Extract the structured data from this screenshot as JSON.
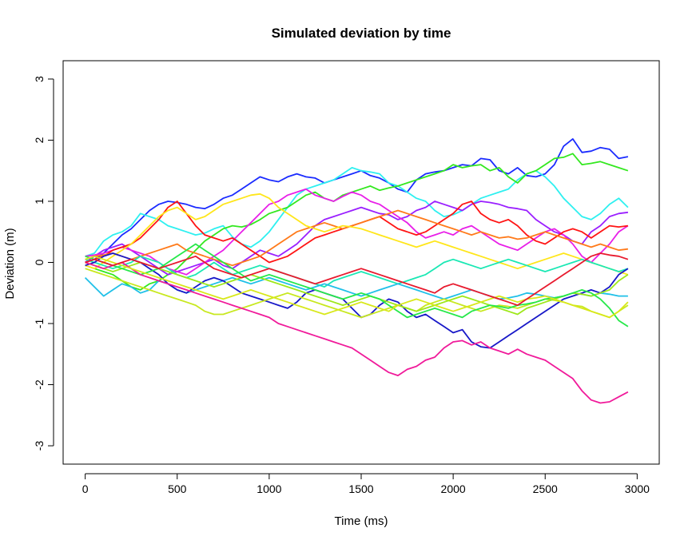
{
  "chart_data": {
    "type": "line",
    "title": "Simulated deviation by time",
    "xlabel": "Time (ms)",
    "ylabel": "Deviation (m)",
    "xlim": [
      -120,
      3120
    ],
    "ylim": [
      -3.3,
      3.3
    ],
    "xticks": [
      0,
      500,
      1000,
      1500,
      2000,
      2500,
      3000
    ],
    "yticks": [
      -3,
      -2,
      -1,
      0,
      1,
      2,
      3
    ],
    "grid": false,
    "legend": "none",
    "x": [
      0,
      50,
      100,
      150,
      200,
      250,
      300,
      350,
      400,
      450,
      500,
      550,
      600,
      650,
      700,
      750,
      800,
      850,
      900,
      950,
      1000,
      1050,
      1100,
      1150,
      1200,
      1250,
      1300,
      1350,
      1400,
      1450,
      1500,
      1550,
      1600,
      1650,
      1700,
      1750,
      1800,
      1850,
      1900,
      1950,
      2000,
      2050,
      2100,
      2150,
      2200,
      2250,
      2300,
      2350,
      2400,
      2450,
      2500,
      2550,
      2600,
      2650,
      2700,
      2750,
      2800,
      2850,
      2900,
      2950
    ],
    "series": [
      {
        "color": "#1a2bff",
        "values": [
          0.0,
          0.05,
          0.15,
          0.3,
          0.45,
          0.55,
          0.7,
          0.85,
          0.95,
          1.0,
          0.98,
          0.95,
          0.9,
          0.88,
          0.95,
          1.05,
          1.1,
          1.2,
          1.3,
          1.4,
          1.35,
          1.32,
          1.4,
          1.45,
          1.4,
          1.38,
          1.3,
          1.35,
          1.4,
          1.45,
          1.5,
          1.42,
          1.38,
          1.3,
          1.2,
          1.15,
          1.35,
          1.45,
          1.48,
          1.5,
          1.55,
          1.6,
          1.58,
          1.7,
          1.68,
          1.5,
          1.45,
          1.55,
          1.42,
          1.4,
          1.45,
          1.6,
          1.9,
          2.02,
          1.8,
          1.82,
          1.88,
          1.85,
          1.7,
          1.73
        ]
      },
      {
        "color": "#2ef0f0",
        "values": [
          0.1,
          0.15,
          0.35,
          0.45,
          0.5,
          0.6,
          0.8,
          0.75,
          0.7,
          0.6,
          0.55,
          0.5,
          0.45,
          0.48,
          0.55,
          0.6,
          0.42,
          0.3,
          0.25,
          0.35,
          0.5,
          0.7,
          0.9,
          1.1,
          1.2,
          1.25,
          1.3,
          1.35,
          1.45,
          1.55,
          1.5,
          1.48,
          1.45,
          1.3,
          1.25,
          1.15,
          1.05,
          1.0,
          0.85,
          0.75,
          0.78,
          0.85,
          0.95,
          1.05,
          1.1,
          1.15,
          1.2,
          1.35,
          1.45,
          1.5,
          1.4,
          1.25,
          1.05,
          0.9,
          0.75,
          0.7,
          0.8,
          0.95,
          1.05,
          0.9
        ]
      },
      {
        "color": "#33e81f",
        "values": [
          -0.05,
          -0.1,
          -0.15,
          -0.2,
          -0.3,
          -0.4,
          -0.45,
          -0.35,
          -0.3,
          -0.2,
          -0.1,
          0.05,
          0.2,
          0.35,
          0.45,
          0.55,
          0.6,
          0.58,
          0.62,
          0.7,
          0.8,
          0.85,
          0.9,
          1.0,
          1.1,
          1.15,
          1.05,
          1.0,
          1.1,
          1.15,
          1.2,
          1.25,
          1.18,
          1.22,
          1.25,
          1.3,
          1.35,
          1.4,
          1.45,
          1.5,
          1.6,
          1.55,
          1.58,
          1.6,
          1.5,
          1.55,
          1.4,
          1.3,
          1.45,
          1.5,
          1.6,
          1.7,
          1.72,
          1.78,
          1.6,
          1.62,
          1.65,
          1.6,
          1.55,
          1.5
        ]
      },
      {
        "color": "#9a1fff",
        "values": [
          0.0,
          0.1,
          0.2,
          0.25,
          0.3,
          0.2,
          0.1,
          0.0,
          -0.1,
          -0.2,
          -0.15,
          -0.1,
          -0.05,
          0.0,
          0.05,
          -0.05,
          -0.1,
          0.0,
          0.1,
          0.2,
          0.15,
          0.1,
          0.2,
          0.3,
          0.45,
          0.6,
          0.7,
          0.75,
          0.8,
          0.85,
          0.9,
          0.85,
          0.8,
          0.78,
          0.7,
          0.75,
          0.85,
          0.9,
          1.0,
          0.95,
          0.9,
          0.85,
          0.95,
          1.0,
          0.98,
          0.95,
          0.9,
          0.88,
          0.85,
          0.7,
          0.6,
          0.5,
          0.45,
          0.35,
          0.3,
          0.5,
          0.6,
          0.75,
          0.8,
          0.82
        ]
      },
      {
        "color": "#e81fe8",
        "values": [
          0.1,
          0.12,
          0.15,
          0.2,
          0.25,
          0.2,
          0.15,
          0.1,
          0.0,
          -0.1,
          -0.15,
          -0.2,
          -0.1,
          0.0,
          0.1,
          0.2,
          0.35,
          0.5,
          0.65,
          0.8,
          0.95,
          1.0,
          1.1,
          1.15,
          1.2,
          1.1,
          1.05,
          1.0,
          1.08,
          1.15,
          1.1,
          1.0,
          0.95,
          0.85,
          0.75,
          0.65,
          0.5,
          0.4,
          0.45,
          0.5,
          0.45,
          0.55,
          0.6,
          0.5,
          0.4,
          0.3,
          0.25,
          0.2,
          0.3,
          0.4,
          0.5,
          0.55,
          0.45,
          0.3,
          0.1,
          0.0,
          0.15,
          0.3,
          0.5,
          0.6
        ]
      },
      {
        "color": "#ff1414",
        "values": [
          0.0,
          0.05,
          0.1,
          0.2,
          0.25,
          0.3,
          0.4,
          0.55,
          0.7,
          0.9,
          1.0,
          0.8,
          0.6,
          0.45,
          0.4,
          0.35,
          0.4,
          0.3,
          0.2,
          0.1,
          0.0,
          0.05,
          0.1,
          0.2,
          0.3,
          0.4,
          0.45,
          0.5,
          0.55,
          0.6,
          0.65,
          0.7,
          0.75,
          0.65,
          0.55,
          0.5,
          0.45,
          0.5,
          0.6,
          0.7,
          0.8,
          0.95,
          1.0,
          0.8,
          0.7,
          0.65,
          0.7,
          0.6,
          0.45,
          0.35,
          0.3,
          0.4,
          0.5,
          0.55,
          0.5,
          0.4,
          0.5,
          0.6,
          0.58,
          0.6
        ]
      },
      {
        "color": "#ff7a1a",
        "values": [
          0.05,
          0.1,
          0.12,
          0.15,
          0.1,
          0.05,
          0.1,
          0.15,
          0.2,
          0.25,
          0.3,
          0.2,
          0.15,
          0.1,
          0.05,
          0.0,
          -0.05,
          0.0,
          0.05,
          0.1,
          0.2,
          0.3,
          0.4,
          0.5,
          0.55,
          0.6,
          0.65,
          0.6,
          0.55,
          0.6,
          0.65,
          0.7,
          0.75,
          0.8,
          0.85,
          0.8,
          0.75,
          0.7,
          0.65,
          0.6,
          0.55,
          0.5,
          0.45,
          0.5,
          0.45,
          0.4,
          0.42,
          0.38,
          0.4,
          0.45,
          0.5,
          0.45,
          0.4,
          0.35,
          0.3,
          0.25,
          0.3,
          0.25,
          0.2,
          0.22
        ]
      },
      {
        "color": "#ffe61a",
        "values": [
          -0.05,
          -0.1,
          0.0,
          0.1,
          0.2,
          0.3,
          0.45,
          0.6,
          0.75,
          0.85,
          0.9,
          0.8,
          0.7,
          0.75,
          0.85,
          0.95,
          1.0,
          1.05,
          1.1,
          1.12,
          1.05,
          0.9,
          0.8,
          0.7,
          0.6,
          0.55,
          0.5,
          0.55,
          0.6,
          0.58,
          0.55,
          0.5,
          0.45,
          0.4,
          0.35,
          0.3,
          0.25,
          0.3,
          0.35,
          0.3,
          0.25,
          0.2,
          0.15,
          0.1,
          0.05,
          0.0,
          -0.05,
          -0.1,
          -0.05,
          0.0,
          0.05,
          0.1,
          0.15,
          0.1,
          0.05,
          0.0,
          -0.05,
          -0.1,
          -0.15,
          -0.2
        ]
      },
      {
        "color": "#1ae8b4",
        "values": [
          0.05,
          0.0,
          -0.05,
          -0.1,
          -0.05,
          0.0,
          0.1,
          0.05,
          0.0,
          -0.1,
          -0.2,
          -0.25,
          -0.2,
          -0.1,
          0.0,
          -0.1,
          -0.2,
          -0.15,
          -0.1,
          -0.05,
          -0.1,
          -0.15,
          -0.2,
          -0.25,
          -0.3,
          -0.35,
          -0.4,
          -0.3,
          -0.25,
          -0.2,
          -0.15,
          -0.2,
          -0.25,
          -0.3,
          -0.35,
          -0.3,
          -0.25,
          -0.2,
          -0.1,
          0.0,
          0.05,
          0.0,
          -0.05,
          -0.1,
          -0.05,
          0.0,
          0.05,
          0.0,
          -0.05,
          -0.1,
          -0.15,
          -0.1,
          -0.05,
          0.0,
          0.05,
          0.0,
          -0.05,
          -0.1,
          -0.15,
          -0.1
        ]
      },
      {
        "color": "#1fc0e8",
        "values": [
          -0.25,
          -0.4,
          -0.55,
          -0.45,
          -0.35,
          -0.4,
          -0.5,
          -0.45,
          -0.3,
          -0.35,
          -0.45,
          -0.5,
          -0.45,
          -0.4,
          -0.35,
          -0.3,
          -0.25,
          -0.3,
          -0.35,
          -0.3,
          -0.25,
          -0.3,
          -0.35,
          -0.4,
          -0.45,
          -0.4,
          -0.35,
          -0.4,
          -0.45,
          -0.5,
          -0.55,
          -0.5,
          -0.45,
          -0.4,
          -0.35,
          -0.4,
          -0.45,
          -0.5,
          -0.55,
          -0.6,
          -0.55,
          -0.5,
          -0.45,
          -0.5,
          -0.55,
          -0.6,
          -0.58,
          -0.55,
          -0.5,
          -0.52,
          -0.55,
          -0.58,
          -0.55,
          -0.5,
          -0.52,
          -0.55,
          -0.5,
          -0.52,
          -0.55,
          -0.55
        ]
      },
      {
        "color": "#1818c8",
        "values": [
          -0.05,
          0.0,
          0.1,
          0.15,
          0.1,
          0.05,
          0.0,
          -0.1,
          -0.2,
          -0.35,
          -0.45,
          -0.5,
          -0.4,
          -0.3,
          -0.25,
          -0.3,
          -0.4,
          -0.5,
          -0.55,
          -0.6,
          -0.65,
          -0.7,
          -0.75,
          -0.65,
          -0.5,
          -0.45,
          -0.5,
          -0.55,
          -0.6,
          -0.75,
          -0.9,
          -0.85,
          -0.7,
          -0.6,
          -0.65,
          -0.8,
          -0.9,
          -0.85,
          -0.95,
          -1.05,
          -1.15,
          -1.1,
          -1.3,
          -1.38,
          -1.4,
          -1.3,
          -1.2,
          -1.1,
          -1.0,
          -0.9,
          -0.8,
          -0.7,
          -0.6,
          -0.55,
          -0.5,
          -0.45,
          -0.5,
          -0.4,
          -0.2,
          -0.1
        ]
      },
      {
        "color": "#c8e81f",
        "values": [
          -0.1,
          -0.15,
          -0.2,
          -0.25,
          -0.3,
          -0.35,
          -0.4,
          -0.45,
          -0.5,
          -0.55,
          -0.6,
          -0.65,
          -0.7,
          -0.8,
          -0.85,
          -0.85,
          -0.8,
          -0.75,
          -0.7,
          -0.65,
          -0.6,
          -0.55,
          -0.5,
          -0.55,
          -0.6,
          -0.65,
          -0.7,
          -0.75,
          -0.8,
          -0.85,
          -0.9,
          -0.85,
          -0.8,
          -0.75,
          -0.7,
          -0.75,
          -0.8,
          -0.7,
          -0.65,
          -0.6,
          -0.65,
          -0.7,
          -0.75,
          -0.8,
          -0.75,
          -0.7,
          -0.72,
          -0.75,
          -0.7,
          -0.65,
          -0.6,
          -0.62,
          -0.65,
          -0.7,
          -0.72,
          -0.8,
          -0.85,
          -0.9,
          -0.8,
          -0.7
        ]
      },
      {
        "color": "#9ee81a",
        "values": [
          0.0,
          -0.05,
          -0.1,
          -0.15,
          -0.1,
          -0.05,
          0.0,
          -0.05,
          -0.1,
          -0.15,
          -0.2,
          -0.25,
          -0.3,
          -0.35,
          -0.4,
          -0.35,
          -0.3,
          -0.25,
          -0.2,
          -0.25,
          -0.3,
          -0.35,
          -0.4,
          -0.45,
          -0.5,
          -0.55,
          -0.6,
          -0.65,
          -0.7,
          -0.65,
          -0.6,
          -0.55,
          -0.6,
          -0.65,
          -0.7,
          -0.75,
          -0.8,
          -0.75,
          -0.7,
          -0.65,
          -0.6,
          -0.55,
          -0.6,
          -0.65,
          -0.7,
          -0.75,
          -0.8,
          -0.85,
          -0.75,
          -0.7,
          -0.65,
          -0.6,
          -0.55,
          -0.5,
          -0.52,
          -0.55,
          -0.5,
          -0.45,
          -0.3,
          -0.2
        ]
      },
      {
        "color": "#26e84a",
        "values": [
          0.1,
          0.05,
          0.0,
          -0.05,
          -0.1,
          -0.15,
          -0.2,
          -0.15,
          -0.1,
          0.0,
          0.1,
          0.2,
          0.3,
          0.2,
          0.1,
          0.0,
          -0.1,
          -0.2,
          -0.3,
          -0.25,
          -0.2,
          -0.25,
          -0.3,
          -0.35,
          -0.4,
          -0.45,
          -0.5,
          -0.55,
          -0.6,
          -0.55,
          -0.5,
          -0.55,
          -0.6,
          -0.7,
          -0.8,
          -0.9,
          -0.85,
          -0.8,
          -0.75,
          -0.8,
          -0.85,
          -0.9,
          -0.8,
          -0.75,
          -0.7,
          -0.72,
          -0.75,
          -0.7,
          -0.68,
          -0.65,
          -0.6,
          -0.58,
          -0.55,
          -0.5,
          -0.45,
          -0.5,
          -0.6,
          -0.75,
          -0.95,
          -1.05
        ]
      },
      {
        "color": "#f01a9a",
        "values": [
          0.0,
          -0.05,
          -0.1,
          -0.05,
          0.0,
          -0.1,
          -0.2,
          -0.25,
          -0.3,
          -0.35,
          -0.4,
          -0.45,
          -0.5,
          -0.55,
          -0.6,
          -0.65,
          -0.7,
          -0.75,
          -0.8,
          -0.85,
          -0.9,
          -1.0,
          -1.05,
          -1.1,
          -1.15,
          -1.2,
          -1.25,
          -1.3,
          -1.35,
          -1.4,
          -1.5,
          -1.6,
          -1.7,
          -1.8,
          -1.85,
          -1.75,
          -1.7,
          -1.6,
          -1.55,
          -1.4,
          -1.3,
          -1.28,
          -1.35,
          -1.3,
          -1.4,
          -1.45,
          -1.5,
          -1.42,
          -1.5,
          -1.55,
          -1.6,
          -1.7,
          -1.8,
          -1.9,
          -2.1,
          -2.25,
          -2.3,
          -2.28,
          -2.2,
          -2.12
        ]
      },
      {
        "color": "#d8e81a",
        "values": [
          0.05,
          0.1,
          0.05,
          0.0,
          -0.05,
          -0.1,
          -0.15,
          -0.2,
          -0.25,
          -0.3,
          -0.35,
          -0.4,
          -0.45,
          -0.5,
          -0.55,
          -0.6,
          -0.55,
          -0.5,
          -0.45,
          -0.5,
          -0.55,
          -0.6,
          -0.65,
          -0.7,
          -0.75,
          -0.8,
          -0.85,
          -0.8,
          -0.75,
          -0.7,
          -0.65,
          -0.7,
          -0.75,
          -0.8,
          -0.7,
          -0.65,
          -0.6,
          -0.65,
          -0.7,
          -0.75,
          -0.8,
          -0.75,
          -0.7,
          -0.65,
          -0.6,
          -0.55,
          -0.6,
          -0.65,
          -0.6,
          -0.58,
          -0.55,
          -0.6,
          -0.65,
          -0.7,
          -0.75,
          -0.8,
          -0.85,
          -0.9,
          -0.8,
          -0.65
        ]
      },
      {
        "color": "#e81a2e",
        "values": [
          0.0,
          0.05,
          0.0,
          -0.05,
          0.0,
          0.05,
          0.0,
          -0.05,
          -0.1,
          -0.05,
          0.0,
          0.05,
          0.1,
          0.0,
          -0.1,
          -0.15,
          -0.2,
          -0.25,
          -0.2,
          -0.15,
          -0.1,
          -0.15,
          -0.2,
          -0.25,
          -0.3,
          -0.35,
          -0.3,
          -0.25,
          -0.2,
          -0.15,
          -0.1,
          -0.15,
          -0.2,
          -0.25,
          -0.3,
          -0.35,
          -0.4,
          -0.45,
          -0.5,
          -0.4,
          -0.35,
          -0.4,
          -0.45,
          -0.5,
          -0.55,
          -0.6,
          -0.65,
          -0.7,
          -0.6,
          -0.5,
          -0.4,
          -0.3,
          -0.2,
          -0.1,
          0.0,
          0.1,
          0.15,
          0.12,
          0.1,
          0.05
        ]
      }
    ]
  }
}
